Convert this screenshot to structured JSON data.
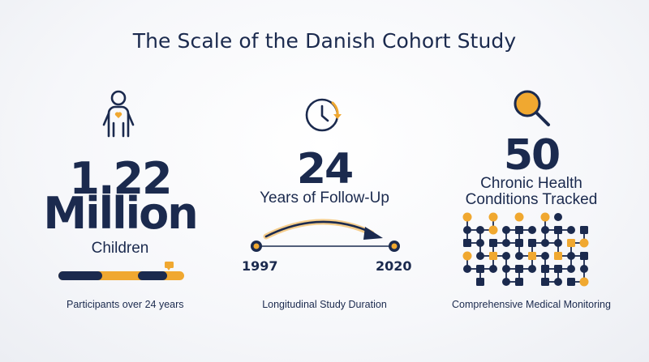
{
  "title": "The Scale of the Danish Cohort Study",
  "colors": {
    "navy": "#1b2a4e",
    "accent": "#f0a830"
  },
  "stats": [
    {
      "icon": "child-person-icon",
      "number_line1": "1.22",
      "number_line2": "Million",
      "label": "Children",
      "caption": "Participants over 24 years"
    },
    {
      "icon": "clock-icon",
      "number": "24",
      "label": "Years of Follow-Up",
      "start_year": "1997",
      "end_year": "2020",
      "caption": "Longitudinal Study Duration"
    },
    {
      "icon": "magnifier-icon",
      "number": "50",
      "label_line1": "Chronic Health",
      "label_line2": "Conditions Tracked",
      "caption": "Comprehensive Medical Monitoring"
    }
  ]
}
